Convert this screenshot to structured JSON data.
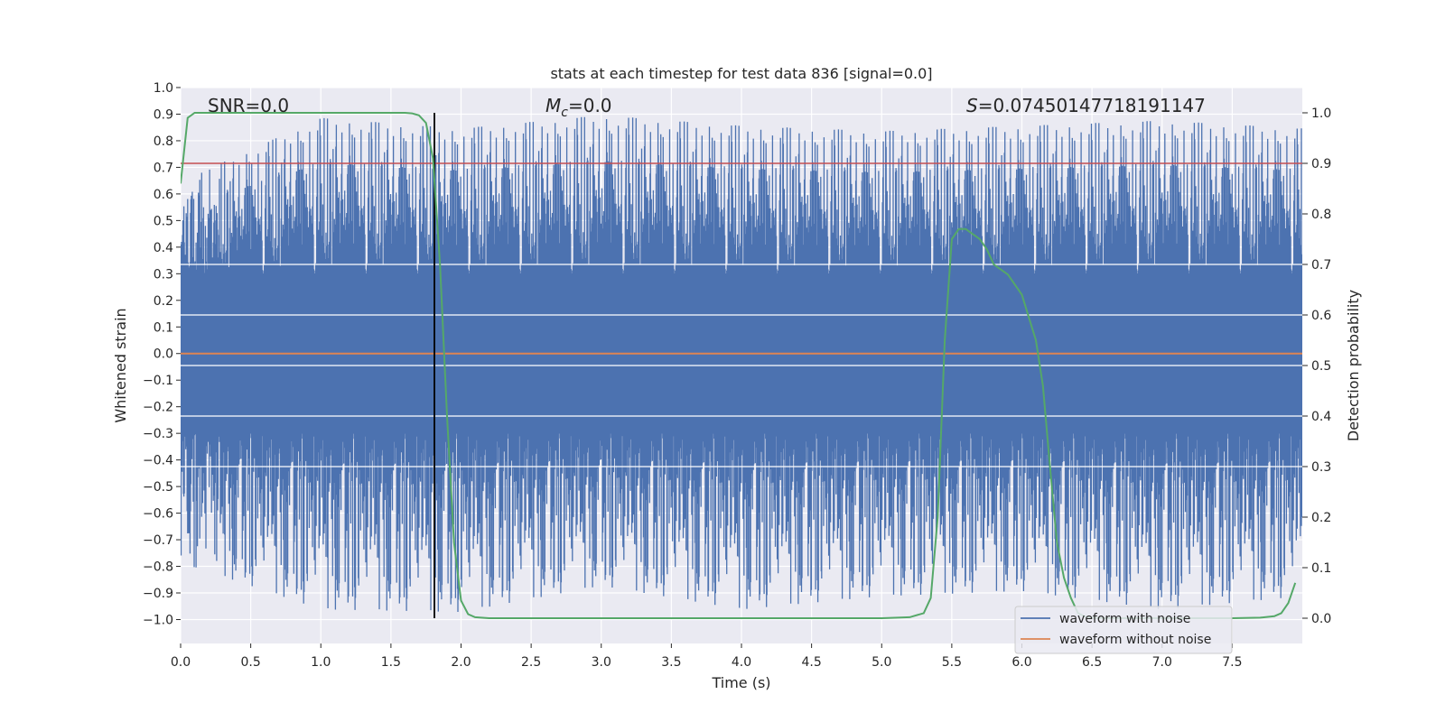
{
  "chart_data": {
    "type": "line",
    "title": "stats at each timestep for test data 836 [signal=0.0]",
    "xlabel": "Time (s)",
    "ylabel": "Whitened strain",
    "y2label": "Detection probability",
    "xlim": [
      0.0,
      8.0
    ],
    "ylim": [
      -1.09,
      1.0
    ],
    "y2lim": [
      -0.05,
      1.05
    ],
    "x_ticks": [
      "0.0",
      "0.5",
      "1.0",
      "1.5",
      "2.0",
      "2.5",
      "3.0",
      "3.5",
      "4.0",
      "4.5",
      "5.0",
      "5.5",
      "6.0",
      "6.5",
      "7.0",
      "7.5"
    ],
    "y_ticks": [
      "1.0",
      "0.9",
      "0.8",
      "0.7",
      "0.6",
      "0.5",
      "0.4",
      "0.3",
      "0.2",
      "0.1",
      "0.0",
      "−0.1",
      "−0.2",
      "−0.3",
      "−0.4",
      "−0.5",
      "−0.6",
      "−0.7",
      "−0.8",
      "−0.9",
      "−1.0"
    ],
    "y2_ticks": [
      "1.0",
      "0.9",
      "0.8",
      "0.7",
      "0.6",
      "0.5",
      "0.4",
      "0.3",
      "0.2",
      "0.1",
      "0.0"
    ],
    "annotations": {
      "snr": "SNR=0.0",
      "mc_symbol": "M",
      "mc_sub": "c",
      "mc_value": "=0.0",
      "s_symbol": "S",
      "s_value": "=0.07450147718191147"
    },
    "threshold": 0.9,
    "marker_time": 1.81,
    "series": [
      {
        "name": "waveform with noise",
        "color": "#4c72b0",
        "axis": "left",
        "kind": "noisy-strain",
        "approx_envelope": {
          "x": [
            0.0,
            1.0,
            2.0,
            3.0,
            4.0,
            5.0,
            6.0,
            7.0,
            8.0
          ],
          "max": [
            0.65,
            0.89,
            0.85,
            0.9,
            0.86,
            0.84,
            0.86,
            0.88,
            0.85
          ],
          "min": [
            -0.79,
            -0.97,
            -0.98,
            -0.88,
            -0.97,
            -0.92,
            -0.9,
            -0.97,
            -0.92
          ]
        }
      },
      {
        "name": "waveform without noise",
        "color": "#dd8452",
        "axis": "left",
        "x": [
          0.0,
          8.0
        ],
        "values": [
          0.0,
          0.0
        ]
      },
      {
        "name": "detection probability",
        "color": "#55a868",
        "axis": "right",
        "x": [
          0.0,
          0.05,
          0.1,
          0.15,
          0.2,
          0.3,
          0.5,
          1.0,
          1.5,
          1.6,
          1.65,
          1.7,
          1.75,
          1.8,
          1.85,
          1.9,
          1.95,
          2.0,
          2.05,
          2.1,
          2.2,
          2.5,
          3.0,
          4.0,
          5.0,
          5.2,
          5.3,
          5.35,
          5.4,
          5.45,
          5.5,
          5.55,
          5.6,
          5.65,
          5.7,
          5.75,
          5.8,
          5.9,
          6.0,
          6.1,
          6.15,
          6.2,
          6.25,
          6.3,
          6.35,
          6.4,
          6.45,
          6.5,
          6.6,
          7.0,
          7.5,
          7.7,
          7.8,
          7.85,
          7.9,
          7.95
        ],
        "values": [
          0.86,
          0.99,
          1.0,
          1.0,
          1.0,
          1.0,
          1.0,
          1.0,
          1.0,
          1.0,
          0.999,
          0.995,
          0.98,
          0.91,
          0.7,
          0.4,
          0.15,
          0.035,
          0.008,
          0.002,
          0.0,
          0.0,
          0.0,
          0.0,
          0.0,
          0.002,
          0.01,
          0.04,
          0.2,
          0.55,
          0.75,
          0.77,
          0.77,
          0.76,
          0.75,
          0.73,
          0.7,
          0.68,
          0.64,
          0.55,
          0.46,
          0.3,
          0.15,
          0.08,
          0.04,
          0.01,
          0.003,
          0.001,
          0.0,
          0.0,
          0.0,
          0.001,
          0.004,
          0.01,
          0.03,
          0.07
        ]
      }
    ],
    "legend": {
      "placement": "lower-right",
      "entries": [
        "waveform with noise",
        "waveform without noise"
      ]
    },
    "colors": {
      "background": "#eaeaf2",
      "grid": "#ffffff",
      "threshold": "#c44e52",
      "marker": "#000000"
    }
  }
}
